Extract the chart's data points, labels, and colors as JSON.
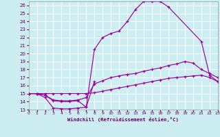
{
  "xlabel": "Windchill (Refroidissement éolien,°C)",
  "bg_color": "#cceef2",
  "line_color": "#990099",
  "grid_color": "#ffffff",
  "xlim": [
    0,
    23
  ],
  "ylim": [
    13,
    26.5
  ],
  "yticks": [
    13,
    14,
    15,
    16,
    17,
    18,
    19,
    20,
    21,
    22,
    23,
    24,
    25,
    26
  ],
  "xticks": [
    0,
    1,
    2,
    3,
    4,
    5,
    6,
    7,
    8,
    9,
    10,
    11,
    12,
    13,
    14,
    15,
    16,
    17,
    18,
    19,
    20,
    21,
    22,
    23
  ],
  "curve1_x": [
    0,
    1,
    2,
    3,
    4,
    5,
    6,
    7,
    8,
    9,
    10,
    11,
    12,
    13,
    14,
    15,
    16,
    17,
    21,
    22,
    23
  ],
  "curve1_y": [
    15,
    15,
    14.5,
    13.2,
    13.1,
    13.1,
    13.2,
    13.3,
    20.5,
    22.0,
    22.5,
    22.8,
    24.0,
    25.5,
    26.5,
    26.5,
    26.5,
    25.8,
    21.5,
    17.3,
    16.5
  ],
  "curve2_x": [
    0,
    1,
    2,
    3,
    4,
    5,
    6,
    7,
    8,
    9,
    10,
    11,
    12,
    13,
    14,
    15,
    16,
    17,
    18,
    19,
    20,
    21,
    22,
    23
  ],
  "curve2_y": [
    15,
    15,
    14.8,
    14.2,
    14.1,
    14.1,
    14.2,
    14.5,
    16.2,
    16.6,
    17.0,
    17.2,
    17.4,
    17.5,
    17.8,
    18.0,
    18.2,
    18.5,
    18.7,
    19.0,
    18.8,
    18.0,
    17.5,
    17.0
  ],
  "curve3_x": [
    0,
    1,
    2,
    3,
    4,
    5,
    6,
    7,
    8,
    9,
    10,
    11,
    12,
    13,
    14,
    15,
    16,
    17,
    18,
    19,
    20,
    21,
    22,
    23
  ],
  "curve3_y": [
    15,
    15,
    15.0,
    15.0,
    15.0,
    15.0,
    15.0,
    15.0,
    15.1,
    15.3,
    15.5,
    15.7,
    15.9,
    16.1,
    16.3,
    16.5,
    16.7,
    16.9,
    17.0,
    17.1,
    17.2,
    17.3,
    17.0,
    16.5
  ],
  "curve4_x": [
    0,
    1,
    2,
    3,
    4,
    5,
    6,
    7,
    8
  ],
  "curve4_y": [
    15,
    15,
    14.8,
    14.1,
    14.0,
    14.0,
    14.1,
    13.3,
    16.5
  ]
}
